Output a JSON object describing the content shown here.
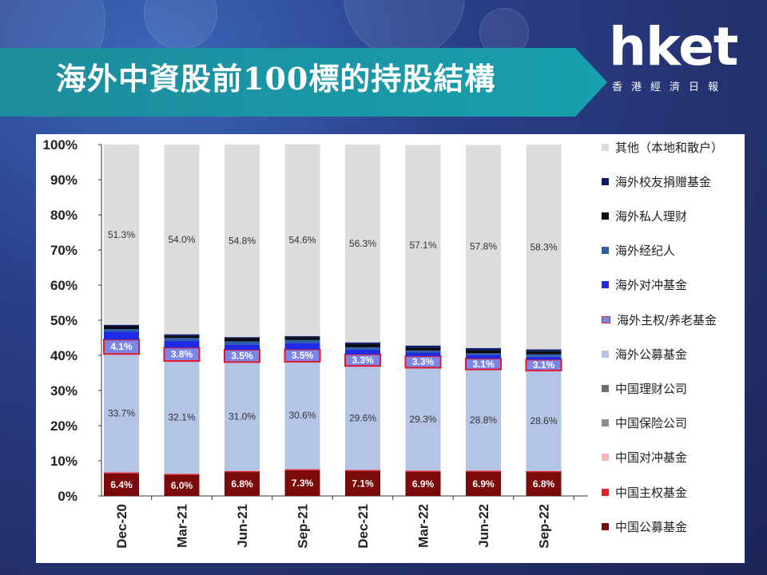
{
  "header": {
    "title": "海外中資股前100標的持股結構",
    "logo_text": "hket",
    "logo_sub": "香港經濟日報"
  },
  "chart_data": {
    "type": "bar",
    "stacked": true,
    "categories": [
      "Dec-20",
      "Mar-21",
      "Jun-21",
      "Sep-21",
      "Dec-21",
      "Mar-22",
      "Jun-22",
      "Sep-22"
    ],
    "ylim": [
      0,
      100
    ],
    "yticks": [
      "0%",
      "10%",
      "20%",
      "30%",
      "40%",
      "50%",
      "60%",
      "70%",
      "80%",
      "90%",
      "100%"
    ],
    "grid": false,
    "legend_position": "right",
    "series": [
      {
        "name": "中国公募基金",
        "color": "#7b0a0a",
        "values": [
          6.4,
          6.0,
          6.8,
          7.3,
          7.1,
          6.9,
          6.9,
          6.8
        ],
        "labels": [
          "6.4%",
          "6.0%",
          "6.8%",
          "7.3%",
          "7.1%",
          "6.9%",
          "6.9%",
          "6.8%"
        ]
      },
      {
        "name": "中国主权基金",
        "color": "#e8202a",
        "values": [
          0.3,
          0.3,
          0.3,
          0.3,
          0.3,
          0.3,
          0.3,
          0.3
        ],
        "labels": []
      },
      {
        "name": "中国对冲基金",
        "color": "#f4b6b6",
        "values": [
          0,
          0,
          0,
          0,
          0,
          0,
          0,
          0
        ],
        "labels": []
      },
      {
        "name": "中国保险公司",
        "color": "#8c8c8c",
        "values": [
          0,
          0,
          0,
          0,
          0,
          0,
          0,
          0
        ],
        "labels": []
      },
      {
        "name": "中国理财公司",
        "color": "#6e6e6e",
        "values": [
          0,
          0,
          0,
          0,
          0,
          0,
          0,
          0
        ],
        "labels": []
      },
      {
        "name": "海外公募基金",
        "color": "#b4c4e6",
        "values": [
          33.7,
          32.1,
          31.0,
          30.6,
          29.6,
          29.3,
          28.8,
          28.6
        ],
        "labels": [
          "33.7%",
          "32.1%",
          "31.0%",
          "30.6%",
          "29.6%",
          "29.3%",
          "28.8%",
          "28.6%"
        ]
      },
      {
        "name": "海外主权/养老基金",
        "color": "#7b86e6",
        "border": "#e01a2a",
        "values": [
          4.1,
          3.8,
          3.5,
          3.5,
          3.3,
          3.3,
          3.1,
          3.1
        ],
        "labels": [
          "4.1%",
          "3.8%",
          "3.5%",
          "3.5%",
          "3.3%",
          "3.3%",
          "3.1%",
          "3.1%"
        ]
      },
      {
        "name": "海外对冲基金",
        "color": "#1f2ae6",
        "values": [
          2.2,
          1.9,
          1.5,
          1.8,
          1.3,
          1.0,
          1.0,
          0.8
        ],
        "labels": []
      },
      {
        "name": "海外经纪人",
        "color": "#2f5fa6",
        "values": [
          0.8,
          0.9,
          0.9,
          0.9,
          0.7,
          0.6,
          0.5,
          0.7
        ],
        "labels": []
      },
      {
        "name": "海外私人理财",
        "color": "#0a0a0a",
        "values": [
          0.8,
          0.6,
          0.9,
          0.8,
          0.9,
          0.8,
          0.9,
          0.9
        ],
        "labels": []
      },
      {
        "name": "海外校友捐赠基金",
        "color": "#0a1a6e",
        "values": [
          0.4,
          0.4,
          0.3,
          0.3,
          0.5,
          0.6,
          0.6,
          0.5
        ],
        "labels": []
      },
      {
        "name": "其他（本地和散户）",
        "color": "#dcdcdc",
        "values": [
          51.3,
          54.0,
          54.8,
          54.6,
          56.3,
          57.1,
          57.8,
          58.3
        ],
        "labels": [
          "51.3%",
          "54.0%",
          "54.8%",
          "54.6%",
          "56.3%",
          "57.1%",
          "57.8%",
          "58.3%"
        ]
      }
    ]
  }
}
